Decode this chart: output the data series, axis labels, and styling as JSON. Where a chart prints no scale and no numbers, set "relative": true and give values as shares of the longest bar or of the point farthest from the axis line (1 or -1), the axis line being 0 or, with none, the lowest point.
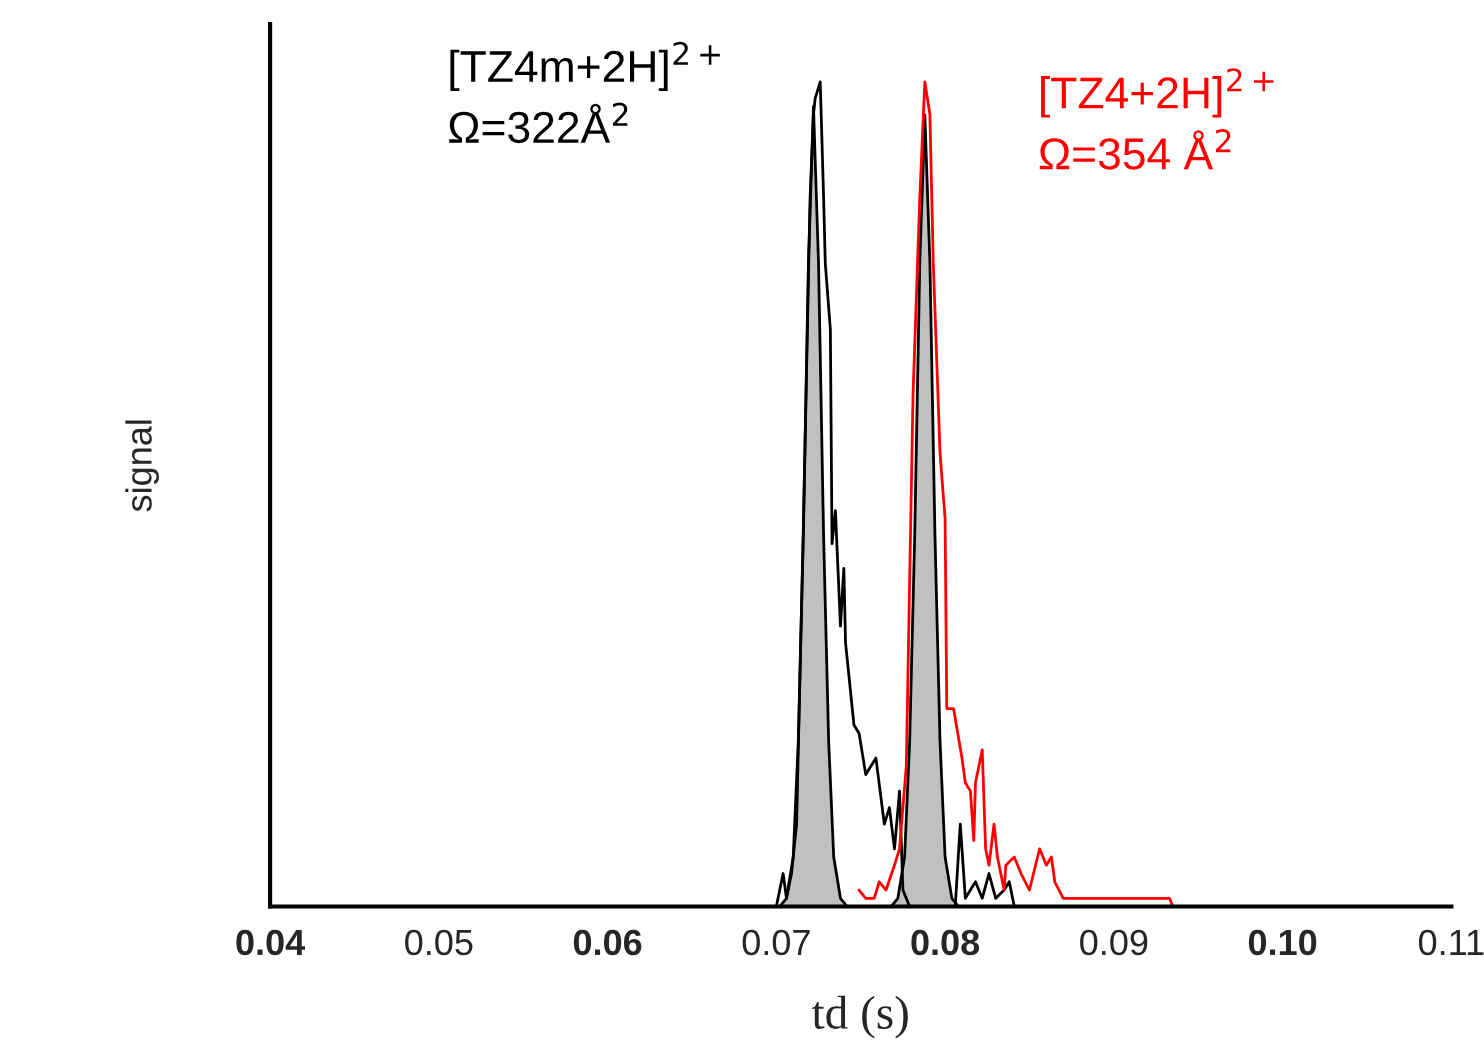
{
  "chart_data": {
    "type": "line",
    "relative": true,
    "xlabel": "td (s)",
    "ylabel": "signal",
    "xlim": [
      0.04,
      0.11
    ],
    "xticks": [
      0.04,
      0.05,
      0.06,
      0.07,
      0.08,
      0.09,
      {
        "value": 0.1,
        "label": "0.10"
      },
      0.11
    ],
    "legend": false,
    "series": [
      {
        "type": "area",
        "color": "#c0c0c0",
        "x": [
          0.0702,
          0.0706,
          0.071,
          0.0713,
          0.0716,
          0.0719,
          0.0722,
          0.0725,
          0.0728,
          0.0731,
          0.0734,
          0.0738,
          0.0742
        ],
        "values": [
          0,
          0.01,
          0.06,
          0.2,
          0.45,
          0.78,
          0.97,
          0.78,
          0.45,
          0.2,
          0.06,
          0.01,
          0
        ]
      },
      {
        "type": "area",
        "color": "#c0c0c0",
        "x": [
          0.0768,
          0.0772,
          0.0776,
          0.0779,
          0.0782,
          0.0785,
          0.0788,
          0.0791,
          0.0794,
          0.0797,
          0.08,
          0.0804,
          0.0808
        ],
        "values": [
          0,
          0.01,
          0.06,
          0.2,
          0.45,
          0.78,
          0.96,
          0.78,
          0.45,
          0.2,
          0.06,
          0.01,
          0
        ]
      },
      {
        "name": "[TZ4m+2H]$^{2+}$\nΩ=322Å$^{2}$",
        "color": "#000000",
        "x": [
          0.07,
          0.0704,
          0.0706,
          0.0709,
          0.0712,
          0.0716,
          0.072,
          0.0722,
          0.0723,
          0.0726,
          0.0728,
          0.0729,
          0.0732,
          0.0733,
          0.0735,
          0.0738,
          0.074,
          0.0741,
          0.0746,
          0.0749,
          0.0753,
          0.0759,
          0.0764,
          0.0767,
          0.077,
          0.0773,
          0.0775,
          0.0779,
          0.0806,
          0.0809,
          0.0812,
          0.0818,
          0.0822,
          0.0826,
          0.083,
          0.0835,
          0.0838,
          0.0841
        ],
        "values": [
          0,
          0.04,
          0.01,
          0.04,
          0.1,
          0.46,
          0.86,
          0.96,
          0.98,
          1.0,
          0.86,
          0.78,
          0.7,
          0.44,
          0.48,
          0.34,
          0.41,
          0.32,
          0.22,
          0.21,
          0.16,
          0.18,
          0.1,
          0.12,
          0.07,
          0.14,
          0.02,
          0,
          0,
          0.1,
          0.01,
          0.03,
          0.01,
          0.04,
          0.01,
          0.02,
          0.03,
          0
        ]
      },
      {
        "name": "[TZ4+2H]$^{2+}$\nΩ=354 Å$^{2}$",
        "color": "#ff0000",
        "x": [
          0.0749,
          0.0753,
          0.0758,
          0.0761,
          0.0765,
          0.077,
          0.0773,
          0.0777,
          0.0781,
          0.0785,
          0.0788,
          0.0791,
          0.0793,
          0.0797,
          0.08,
          0.0801,
          0.0805,
          0.081,
          0.0812,
          0.0815,
          0.0817,
          0.0818,
          0.0822,
          0.0824,
          0.0826,
          0.0829,
          0.0831,
          0.0835,
          0.0836,
          0.0841,
          0.0845,
          0.085,
          0.0856,
          0.086,
          0.0863,
          0.0865,
          0.087,
          0.0888,
          0.0895,
          0.09,
          0.0933,
          0.0935
        ],
        "values": [
          0.02,
          0.01,
          0.01,
          0.03,
          0.02,
          0.05,
          0.07,
          0.17,
          0.62,
          0.86,
          1.0,
          0.96,
          0.78,
          0.55,
          0.47,
          0.24,
          0.24,
          0.18,
          0.15,
          0.14,
          0.08,
          0.15,
          0.19,
          0.07,
          0.05,
          0.1,
          0.06,
          0.02,
          0.05,
          0.06,
          0.04,
          0.02,
          0.07,
          0.05,
          0.06,
          0.03,
          0.01,
          0.01,
          0.01,
          0.01,
          0.01,
          0
        ]
      }
    ]
  }
}
